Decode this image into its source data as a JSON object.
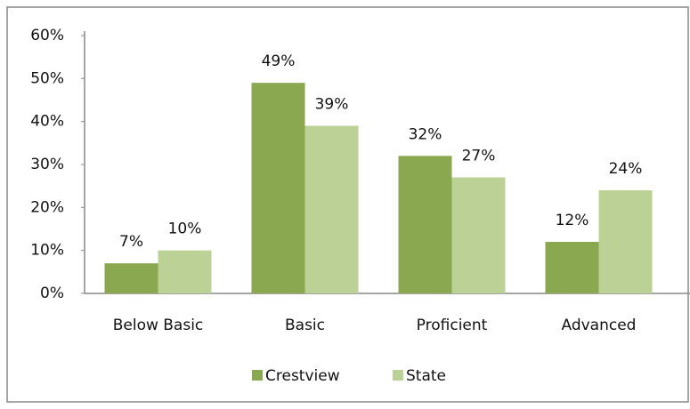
{
  "chart_data": {
    "type": "bar",
    "categories": [
      "Below Basic",
      "Basic",
      "Proficient",
      "Advanced"
    ],
    "series": [
      {
        "name": "Crestview",
        "color": "#8aa84f",
        "values": [
          7,
          49,
          32,
          12
        ],
        "value_labels": [
          "7%",
          "49%",
          "32%",
          "12%"
        ]
      },
      {
        "name": "State",
        "color": "#bcd196",
        "values": [
          10,
          39,
          27,
          24
        ],
        "value_labels": [
          "10%",
          "39%",
          "27%",
          "24%"
        ]
      }
    ],
    "ylim": [
      0,
      60
    ],
    "yticks": [
      {
        "value": 0,
        "label": "0%"
      },
      {
        "value": 10,
        "label": "10%"
      },
      {
        "value": 20,
        "label": "20%"
      },
      {
        "value": 30,
        "label": "30%"
      },
      {
        "value": 40,
        "label": "40%"
      },
      {
        "value": 50,
        "label": "50%"
      },
      {
        "value": 60,
        "label": "60%"
      }
    ],
    "grid": false,
    "legend": "bottom"
  }
}
